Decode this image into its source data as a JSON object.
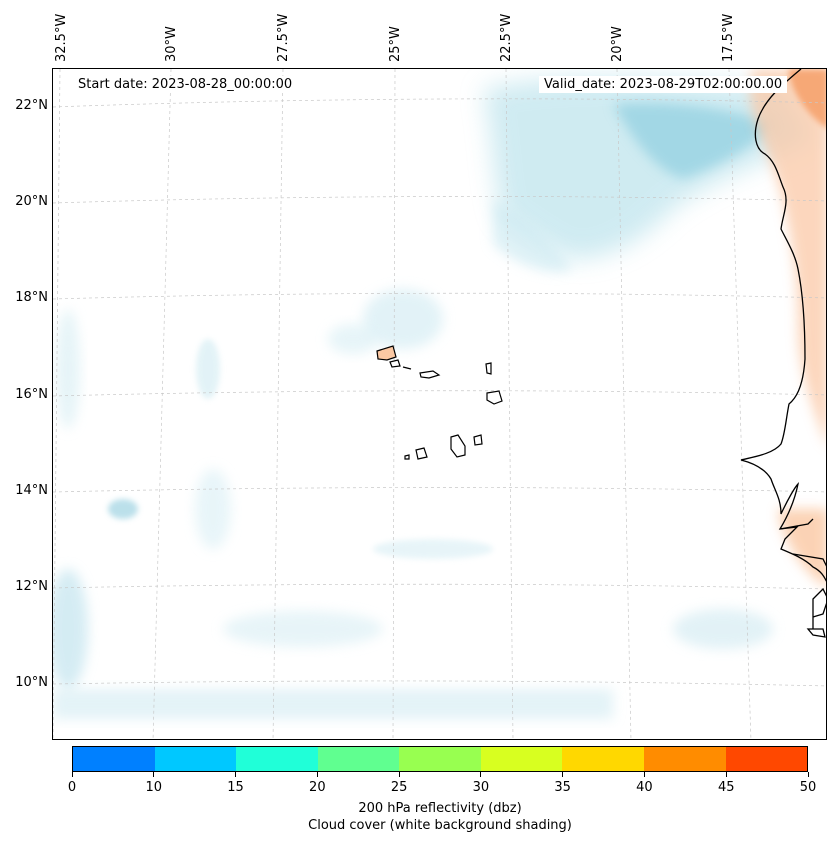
{
  "map": {
    "start_date": "Start date: 2023-08-28_00:00:00",
    "valid_date": "Valid_date: 2023-08-29T02:00:00.00",
    "longitude_labels": [
      "32.5°W",
      "30°W",
      "27.5°W",
      "25°W",
      "22.5°W",
      "20°W",
      "17.5°W"
    ],
    "latitude_labels": [
      "22°N",
      "20°N",
      "18°N",
      "16°N",
      "14°N",
      "12°N",
      "10°N"
    ]
  },
  "colorbar": {
    "ticks": [
      "0",
      "10",
      "15",
      "20",
      "25",
      "30",
      "35",
      "40",
      "45",
      "50"
    ],
    "colors": [
      "#0080ff",
      "#00c8ff",
      "#20ffd8",
      "#60ff90",
      "#98ff50",
      "#d8ff20",
      "#ffd800",
      "#ff8c00",
      "#ff4800"
    ],
    "label_line1": "200 hPa reflectivity (dbz)",
    "label_line2": "Cloud cover (white background shading)"
  }
}
